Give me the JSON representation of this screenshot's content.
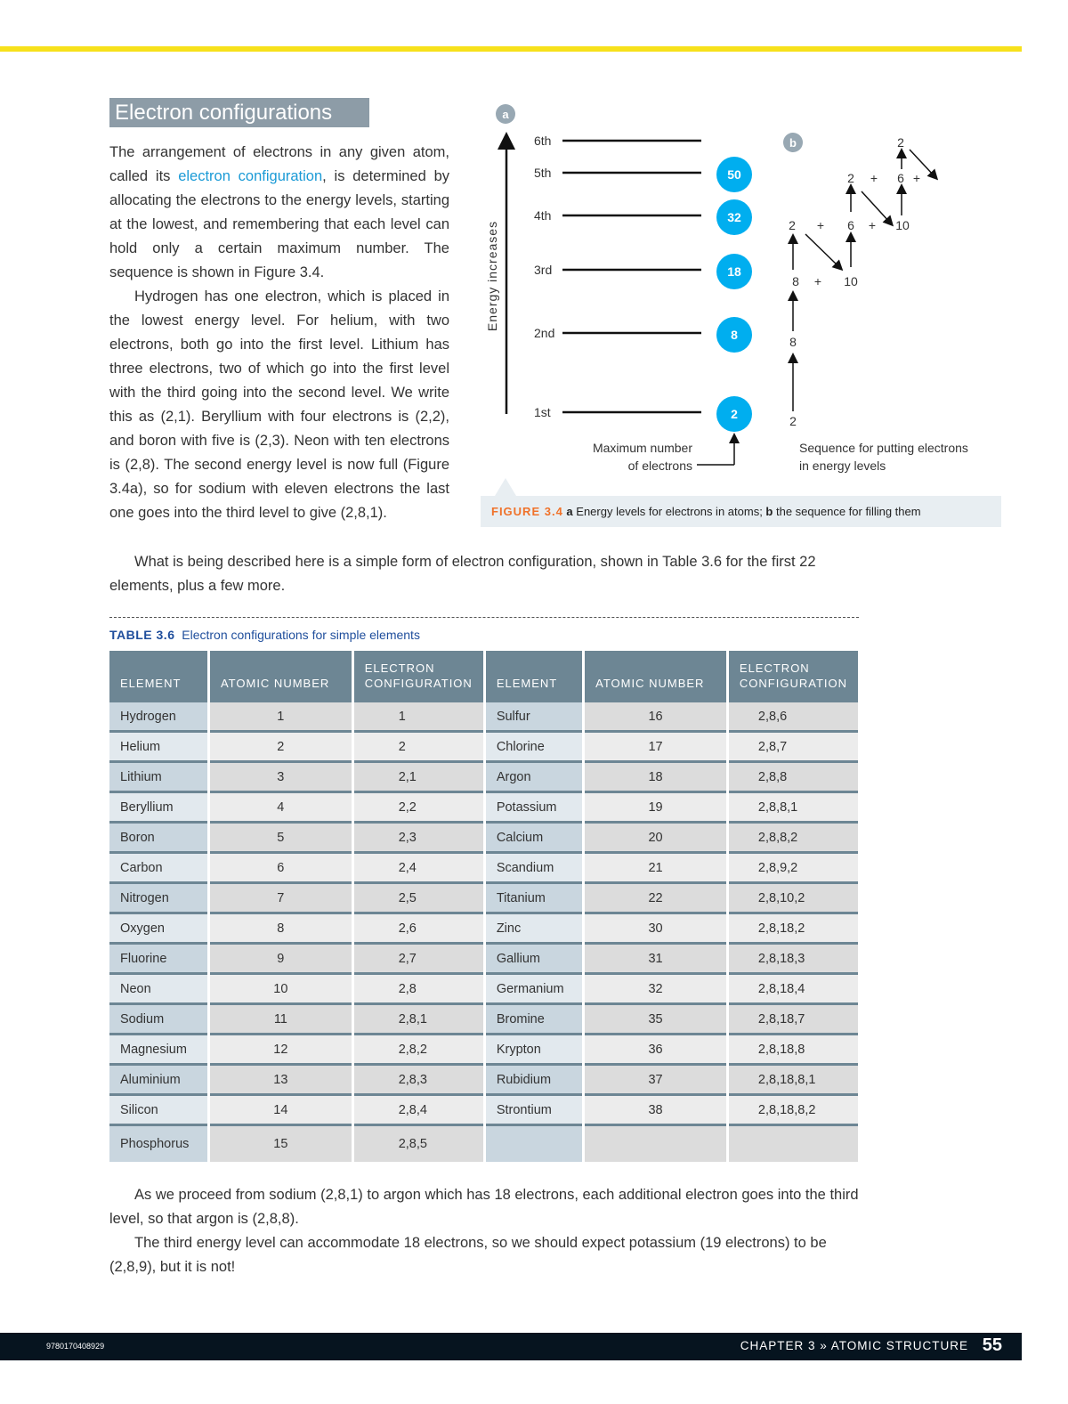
{
  "heading": "Electron configurations",
  "para1": {
    "pre": "The arrangement of electrons in any given atom, called its ",
    "link": "electron configuration",
    "post": ", is determined by allocating the electrons to the energy levels, starting at the lowest, and remembering that each level can hold only a certain maximum number. The sequence is shown in Figure 3.4."
  },
  "para2": "Hydrogen has one electron, which is placed in the lowest energy level. For helium, with two electrons, both go into the first level. Lithium has three electrons, two of which go into the first level with the third going into the second level. We write this as (2,1). Beryllium with four electrons is (2,2), and boron with five is (2,3). Neon with ten electrons is (2,8). The second energy level is now full (Figure 3.4a), so for sodium with eleven electrons the last one goes into the third level to give (2,8,1).",
  "para3": "What is being described here is a simple form of electron configuration, shown in Table 3.6 for the first 22 elements, plus a few more.",
  "figure": {
    "label_a": "a",
    "label_b": "b",
    "axis_label": "Energy increases",
    "levels": [
      {
        "name": "6th",
        "max": ""
      },
      {
        "name": "5th",
        "max": "50"
      },
      {
        "name": "4th",
        "max": "32"
      },
      {
        "name": "3rd",
        "max": "18"
      },
      {
        "name": "2nd",
        "max": "8"
      },
      {
        "name": "1st",
        "max": "2"
      }
    ],
    "max_label_1": "Maximum number",
    "max_label_2": "of electrons",
    "sequence": {
      "s1": "2",
      "s2": "8",
      "r3": [
        "8",
        "+",
        "10"
      ],
      "r4": [
        "2",
        "+",
        "6",
        "+",
        "10"
      ],
      "r5": [
        "2",
        "+",
        "6",
        "+"
      ],
      "top": "2"
    },
    "seq_label_1": "Sequence for putting electrons",
    "seq_label_2": "in energy levels",
    "circle_color": "#00aeef",
    "caption": {
      "fig": "FIGURE 3.4",
      "a": "a",
      "a_text": " Energy levels for electrons in atoms; ",
      "b": "b",
      "b_text": " the sequence for filling them"
    }
  },
  "table": {
    "label": "TABLE 3.6",
    "title": "Electron configurations for simple elements",
    "headers": [
      "ELEMENT",
      "ATOMIC NUMBER",
      "ELECTRON CONFIGURATION",
      "ELEMENT",
      "ATOMIC NUMBER",
      "ELECTRON CONFIGURATION"
    ],
    "rows": [
      [
        "Hydrogen",
        "1",
        "1",
        "Sulfur",
        "16",
        "2,8,6"
      ],
      [
        "Helium",
        "2",
        "2",
        "Chlorine",
        "17",
        "2,8,7"
      ],
      [
        "Lithium",
        "3",
        "2,1",
        "Argon",
        "18",
        "2,8,8"
      ],
      [
        "Beryllium",
        "4",
        "2,2",
        "Potassium",
        "19",
        "2,8,8,1"
      ],
      [
        "Boron",
        "5",
        "2,3",
        "Calcium",
        "20",
        "2,8,8,2"
      ],
      [
        "Carbon",
        "6",
        "2,4",
        "Scandium",
        "21",
        "2,8,9,2"
      ],
      [
        "Nitrogen",
        "7",
        "2,5",
        "Titanium",
        "22",
        "2,8,10,2"
      ],
      [
        "Oxygen",
        "8",
        "2,6",
        "Zinc",
        "30",
        "2,8,18,2"
      ],
      [
        "Fluorine",
        "9",
        "2,7",
        "Gallium",
        "31",
        "2,8,18,3"
      ],
      [
        "Neon",
        "10",
        "2,8",
        "Germanium",
        "32",
        "2,8,18,4"
      ],
      [
        "Sodium",
        "11",
        "2,8,1",
        "Bromine",
        "35",
        "2,8,18,7"
      ],
      [
        "Magnesium",
        "12",
        "2,8,2",
        "Krypton",
        "36",
        "2,8,18,8"
      ],
      [
        "Aluminium",
        "13",
        "2,8,3",
        "Rubidium",
        "37",
        "2,8,18,8,1"
      ],
      [
        "Silicon",
        "14",
        "2,8,4",
        "Strontium",
        "38",
        "2,8,18,8,2"
      ],
      [
        "Phosphorus",
        "15",
        "2,8,5",
        "",
        "",
        ""
      ]
    ]
  },
  "para4": "As we proceed from sodium (2,8,1) to argon which has 18 electrons, each additional electron goes into the third level, so that argon is (2,8,8).",
  "para5": "The third energy level can accommodate 18 electrons, so we should expect potassium (19 electrons) to be (2,8,9), but it is not!",
  "footer": {
    "isbn": "9780170408929",
    "chapter": "CHAPTER 3 » ATOMIC STRUCTURE",
    "page": "55"
  }
}
